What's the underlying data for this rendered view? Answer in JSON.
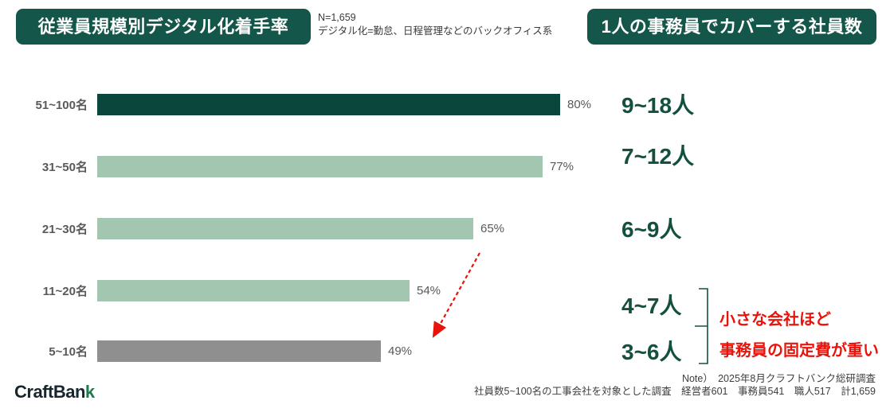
{
  "header": {
    "left_badge": "従業員規模別デジタル化着手率",
    "note_n": "N=1,659",
    "note_definition": "デジタル化=勤怠、日程管理などのバックオフィス系",
    "right_badge": "1人の事務員でカバーする社員数"
  },
  "chart_data": {
    "type": "bar",
    "orientation": "horizontal",
    "title": "従業員規模別デジタル化着手率",
    "categories": [
      "51~100名",
      "31~50名",
      "21~30名",
      "11~20名",
      "5~10名"
    ],
    "values": [
      80,
      77,
      65,
      54,
      49
    ],
    "value_labels": [
      "80%",
      "77%",
      "65%",
      "54%",
      "49%"
    ],
    "xlim": [
      0,
      100
    ],
    "grid": false,
    "bar_colors": [
      "#0a463b",
      "#a2c6b0",
      "#a2c6b0",
      "#a2c6b0",
      "#8f8f8f"
    ],
    "annotation_arrow": "red dashed arrow from 65% label down to 49% bar"
  },
  "coverage": {
    "items": [
      "9~18人",
      "7~12人",
      "6~9人",
      "4~7人",
      "3~6人"
    ],
    "annotation_line1": "小さな会社ほど",
    "annotation_line2": "事務員の固定費が重い"
  },
  "footer": {
    "logo_main": "CraftBan",
    "logo_accent": "k",
    "note_line1": "Note）　2025年8月クラフトバンク総研調査",
    "note_line2": "社員数5~100名の工事会社を対象とした調査　経営者601　事務員541　職人517　計1,659"
  },
  "colors": {
    "badge_green": "#14564a",
    "dark_bar_green": "#0a463b",
    "light_bar_green": "#a2c6b0",
    "gray_bar": "#8f8f8f",
    "coverage_text_green": "#14503f",
    "annotation_red": "#e8130a",
    "label_gray": "#595959"
  }
}
